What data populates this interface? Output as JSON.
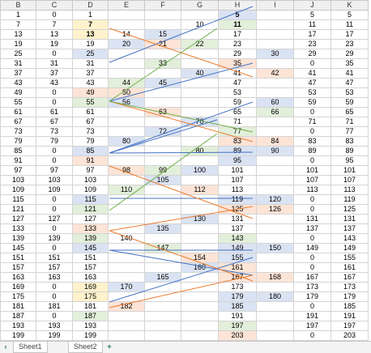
{
  "columns": [
    "B",
    "C",
    "D",
    "E",
    "F",
    "G",
    "H",
    "I",
    "J",
    "K"
  ],
  "rows": [
    [
      "1",
      "0",
      "1",
      "",
      "",
      "",
      "5",
      "",
      "5",
      "5"
    ],
    [
      "7",
      "7",
      "7",
      "",
      "",
      "10",
      "11",
      "",
      "11",
      "11"
    ],
    [
      "13",
      "13",
      "13",
      "14",
      "15",
      "",
      "17",
      "",
      "17",
      "17"
    ],
    [
      "19",
      "19",
      "19",
      "20",
      "21",
      "22",
      "23",
      "",
      "23",
      "23"
    ],
    [
      "25",
      "0",
      "25",
      "",
      "",
      "",
      "29",
      "30",
      "29",
      "29"
    ],
    [
      "31",
      "31",
      "31",
      "",
      "33",
      "",
      "35",
      "",
      "0",
      "35"
    ],
    [
      "37",
      "37",
      "37",
      "",
      "",
      "40",
      "41",
      "42",
      "41",
      "41"
    ],
    [
      "43",
      "43",
      "43",
      "44",
      "45",
      "",
      "47",
      "",
      "47",
      "47"
    ],
    [
      "49",
      "0",
      "49",
      "50",
      "",
      "",
      "53",
      "",
      "53",
      "53"
    ],
    [
      "55",
      "0",
      "55",
      "56",
      "",
      "",
      "59",
      "60",
      "59",
      "59"
    ],
    [
      "61",
      "61",
      "61",
      "",
      "63",
      "",
      "65",
      "66",
      "0",
      "65"
    ],
    [
      "67",
      "67",
      "67",
      "",
      "",
      "70",
      "71",
      "",
      "71",
      "71"
    ],
    [
      "73",
      "73",
      "73",
      "",
      "72",
      "",
      "77",
      "",
      "0",
      "77"
    ],
    [
      "79",
      "79",
      "79",
      "80",
      "",
      "",
      "83",
      "84",
      "83",
      "83"
    ],
    [
      "85",
      "0",
      "85",
      "",
      "",
      "80",
      "89",
      "90",
      "89",
      "89"
    ],
    [
      "91",
      "0",
      "91",
      "",
      "",
      "",
      "95",
      "",
      "0",
      "95"
    ],
    [
      "97",
      "97",
      "97",
      "98",
      "99",
      "100",
      "101",
      "",
      "101",
      "101"
    ],
    [
      "103",
      "103",
      "103",
      "",
      "105",
      "",
      "107",
      "",
      "107",
      "107"
    ],
    [
      "109",
      "109",
      "109",
      "110",
      "",
      "112",
      "113",
      "",
      "113",
      "113"
    ],
    [
      "115",
      "0",
      "115",
      "",
      "",
      "",
      "119",
      "120",
      "0",
      "119"
    ],
    [
      "121",
      "0",
      "121",
      "",
      "",
      "",
      "125",
      "126",
      "0",
      "125"
    ],
    [
      "127",
      "127",
      "127",
      "",
      "",
      "130",
      "131",
      "",
      "131",
      "131"
    ],
    [
      "133",
      "0",
      "133",
      "",
      "135",
      "",
      "137",
      "",
      "137",
      "137"
    ],
    [
      "139",
      "139",
      "139",
      "140",
      "",
      "",
      "143",
      "",
      "0",
      "143"
    ],
    [
      "145",
      "0",
      "145",
      "",
      "147",
      "",
      "149",
      "150",
      "149",
      "149"
    ],
    [
      "151",
      "151",
      "151",
      "",
      "",
      "154",
      "155",
      "",
      "0",
      "155"
    ],
    [
      "157",
      "157",
      "157",
      "",
      "",
      "160",
      "161",
      "",
      "0",
      "161"
    ],
    [
      "163",
      "163",
      "163",
      "",
      "165",
      "",
      "167",
      "168",
      "167",
      "167"
    ],
    [
      "169",
      "0",
      "169",
      "170",
      "",
      "",
      "173",
      "",
      "173",
      "173"
    ],
    [
      "175",
      "0",
      "175",
      "",
      "",
      "",
      "179",
      "180",
      "179",
      "179"
    ],
    [
      "181",
      "181",
      "181",
      "182",
      "",
      "",
      "185",
      "",
      "0",
      "185"
    ],
    [
      "187",
      "0",
      "187",
      "",
      "",
      "",
      "191",
      "",
      "191",
      "191"
    ],
    [
      "193",
      "193",
      "193",
      "",
      "",
      "",
      "197",
      "",
      "197",
      "197"
    ],
    [
      "199",
      "199",
      "199",
      "",
      "",
      "",
      "203",
      "",
      "0",
      "203"
    ]
  ],
  "cell_colors": {
    "0-6": "c-blue",
    "1-2": "c-yellow",
    "1-6": "c-green",
    "2-2": "c-yellow",
    "2-4": "c-blue",
    "3-3": "c-blue",
    "3-4": "c-orange",
    "3-5": "c-green",
    "4-2": "c-blue",
    "4-7": "c-blue",
    "5-4": "c-green",
    "5-6": "c-orange",
    "6-5": "c-blue",
    "6-7": "c-orange",
    "7-3": "c-green",
    "7-4": "c-blue",
    "8-2": "c-orange",
    "8-3": "c-orange",
    "9-2": "c-green",
    "9-3": "c-blue",
    "9-7": "c-blue",
    "10-4": "c-orange",
    "10-7": "c-green",
    "11-5": "c-blue",
    "12-4": "c-blue",
    "12-6": "c-green",
    "13-3": "c-blue",
    "13-6": "c-orange",
    "13-7": "c-orange",
    "14-2": "c-blue",
    "14-5": "c-green",
    "14-6": "c-blue",
    "14-7": "c-blue",
    "15-2": "c-orange",
    "15-6": "c-blue",
    "16-3": "c-orange",
    "16-4": "c-green",
    "16-5": "c-blue",
    "17-4": "c-blue",
    "18-3": "c-green",
    "18-5": "c-orange",
    "19-2": "c-blue",
    "19-6": "c-blue",
    "19-7": "c-blue",
    "20-2": "c-green",
    "20-6": "c-orange",
    "20-7": "c-orange",
    "21-5": "c-blue",
    "22-2": "c-orange",
    "22-4": "c-blue",
    "23-2": "c-green",
    "23-6": "c-green",
    "24-2": "c-blue",
    "24-4": "c-green",
    "24-6": "c-blue",
    "24-7": "c-blue",
    "25-5": "c-orange",
    "25-6": "c-blue",
    "26-5": "c-blue",
    "26-6": "c-orange",
    "27-4": "c-blue",
    "27-6": "c-orange",
    "27-7": "c-orange",
    "28-2": "c-yellow",
    "28-3": "c-blue",
    "29-2": "c-yellow",
    "29-6": "c-blue",
    "29-7": "c-blue",
    "30-3": "c-orange",
    "30-6": "c-blue",
    "31-2": "c-green",
    "32-6": "c-green",
    "33-6": "c-orange"
  },
  "bold_cells": [
    "0-6",
    "1-2",
    "1-6",
    "2-2"
  ],
  "tabs": [
    "Sheet1",
    "Sheet2"
  ]
}
